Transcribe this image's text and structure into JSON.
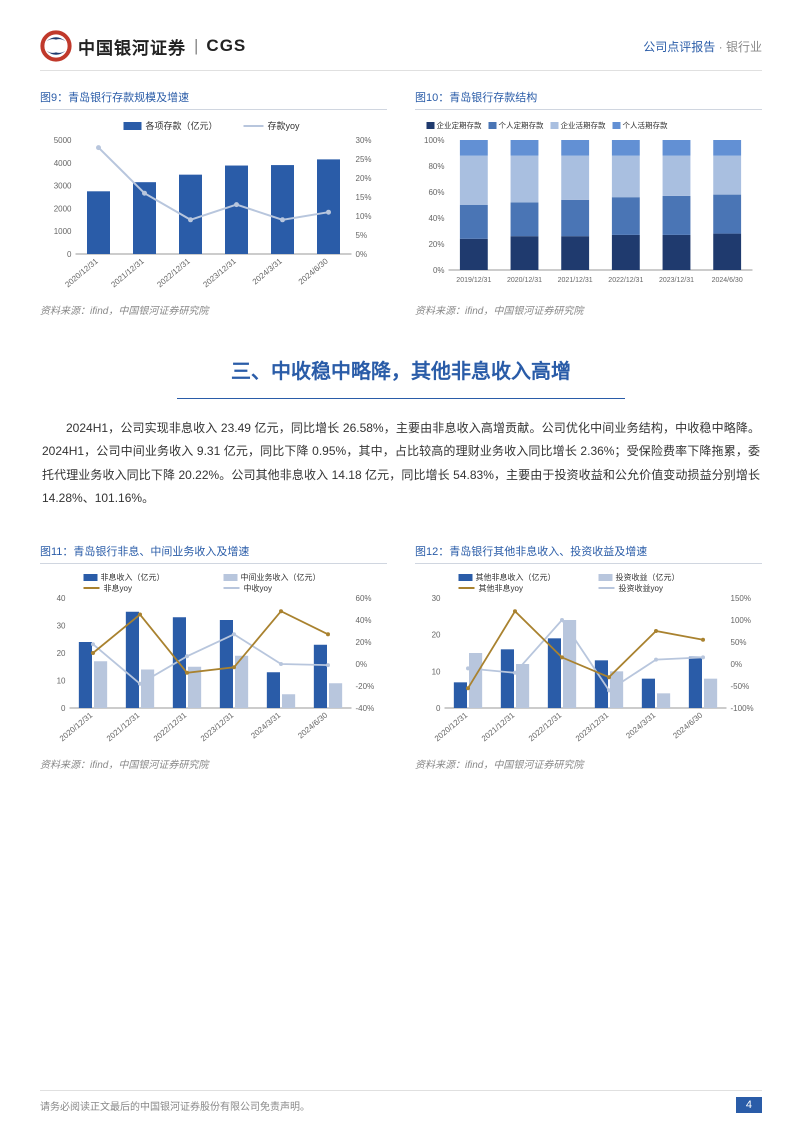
{
  "header": {
    "logo_text": "中国银河证券",
    "logo_cgs": "CGS",
    "report_type": "公司点评报告",
    "sector": "银行业"
  },
  "chart9": {
    "title": "图9：青岛银行存款规模及增速",
    "source": "资料来源：ifind，中国银河证券研究院",
    "legend_bar": "各项存款（亿元）",
    "legend_line": "存款yoy",
    "bar_color": "#2a5ca8",
    "line_color": "#b8c6dd",
    "categories": [
      "2020/12/31",
      "2021/12/31",
      "2022/12/31",
      "2023/12/31",
      "2024/3/31",
      "2024/6/30"
    ],
    "bar_values": [
      2750,
      3150,
      3480,
      3880,
      3900,
      4150
    ],
    "line_values": [
      28,
      16,
      9,
      13,
      9,
      11
    ],
    "y1_max": 5000,
    "y1_step": 1000,
    "y2_max": 30,
    "y2_step": 5,
    "axis_fontsize": 8
  },
  "chart10": {
    "title": "图10：青岛银行存款结构",
    "source": "资料来源：ifind，中国银河证券研究院",
    "legend": [
      "企业定期存款",
      "个人定期存款",
      "企业活期存款",
      "个人活期存款"
    ],
    "colors": [
      "#1f3a6e",
      "#4a75b5",
      "#a9bfe0",
      "#6290d4"
    ],
    "categories": [
      "2019/12/31",
      "2020/12/31",
      "2021/12/31",
      "2022/12/31",
      "2023/12/31",
      "2024/6/30"
    ],
    "stacks": [
      [
        24,
        26,
        38,
        12
      ],
      [
        26,
        26,
        36,
        12
      ],
      [
        26,
        28,
        34,
        12
      ],
      [
        27,
        29,
        32,
        12
      ],
      [
        27,
        30,
        31,
        12
      ],
      [
        28,
        30,
        30,
        12
      ]
    ],
    "y_max": 100,
    "y_step": 20,
    "axis_fontsize": 8
  },
  "section": {
    "title": "三、中收稳中略降，其他非息收入高增",
    "body": "2024H1，公司实现非息收入 23.49 亿元，同比增长 26.58%，主要由非息收入高增贡献。公司优化中间业务结构，中收稳中略降。2024H1，公司中间业务收入 9.31 亿元，同比下降 0.95%，其中，占比较高的理财业务收入同比增长 2.36%；受保险费率下降拖累，委托代理业务收入同比下降 20.22%。公司其他非息收入 14.18 亿元，同比增长 54.83%，主要由于投资收益和公允价值变动损益分别增长 14.28%、101.16%。"
  },
  "chart11": {
    "title": "图11：青岛银行非息、中间业务收入及增速",
    "source": "资料来源：ifind，中国银河证券研究院",
    "legend_bar1": "非息收入（亿元）",
    "legend_bar2": "中间业务收入（亿元）",
    "legend_line1": "非息yoy",
    "legend_line2": "中收yoy",
    "bar1_color": "#2a5ca8",
    "bar2_color": "#b8c6dd",
    "line1_color": "#a9822f",
    "line2_color": "#b8c6dd",
    "categories": [
      "2020/12/31",
      "2021/12/31",
      "2022/12/31",
      "2023/12/31",
      "2024/3/31",
      "2024/6/30"
    ],
    "bar1_values": [
      24,
      35,
      33,
      32,
      13,
      23
    ],
    "bar2_values": [
      17,
      14,
      15,
      19,
      5,
      9
    ],
    "line1_values": [
      10,
      45,
      -8,
      -3,
      48,
      27
    ],
    "line2_values": [
      18,
      -18,
      7,
      27,
      0,
      -1
    ],
    "y1_max": 40,
    "y1_step": 10,
    "y2_min": -40,
    "y2_max": 60,
    "y2_step": 20,
    "axis_fontsize": 8
  },
  "chart12": {
    "title": "图12：青岛银行其他非息收入、投资收益及增速",
    "source": "资料来源：ifind，中国银河证券研究院",
    "legend_bar1": "其他非息收入（亿元）",
    "legend_bar2": "投资收益（亿元）",
    "legend_line1": "其他非息yoy",
    "legend_line2": "投资收益yoy",
    "bar1_color": "#2a5ca8",
    "bar2_color": "#b8c6dd",
    "line1_color": "#a9822f",
    "line2_color": "#b8c6dd",
    "categories": [
      "2020/12/31",
      "2021/12/31",
      "2022/12/31",
      "2023/12/31",
      "2024/3/31",
      "2024/6/30"
    ],
    "bar1_values": [
      7,
      16,
      19,
      13,
      8,
      14
    ],
    "bar2_values": [
      15,
      12,
      24,
      10,
      4,
      8
    ],
    "line1_values": [
      -55,
      120,
      15,
      -30,
      75,
      55
    ],
    "line2_values": [
      -10,
      -20,
      100,
      -60,
      10,
      15
    ],
    "y1_max": 30,
    "y1_step": 10,
    "y2_min": -100,
    "y2_max": 150,
    "y2_step": 50,
    "axis_fontsize": 8
  },
  "footer": {
    "disclaimer": "请务必阅读正文最后的中国银河证券股份有限公司免责声明。",
    "page": "4"
  }
}
